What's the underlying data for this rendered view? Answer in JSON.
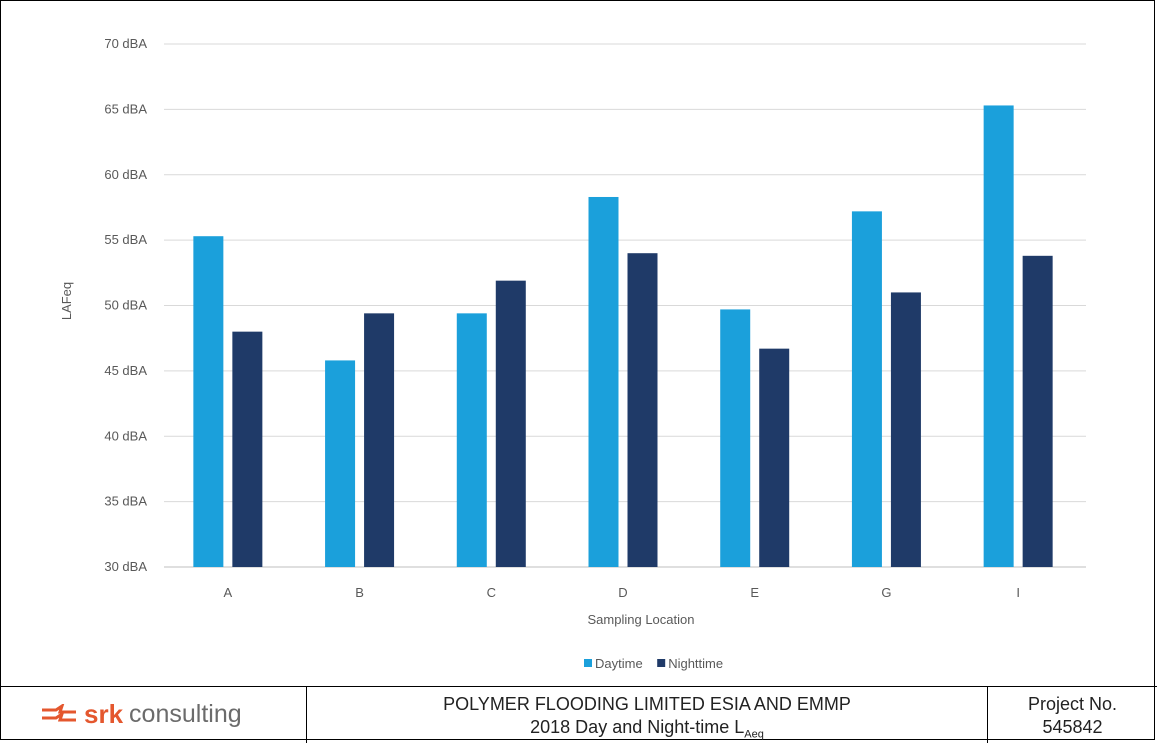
{
  "chart_data": {
    "type": "bar",
    "categories": [
      "A",
      "B",
      "C",
      "D",
      "E",
      "G",
      "I"
    ],
    "series": [
      {
        "name": "Daytime",
        "values": [
          55.3,
          45.8,
          49.4,
          58.3,
          49.7,
          57.2,
          65.3
        ],
        "color": "#1ba0db"
      },
      {
        "name": "Nighttime",
        "values": [
          48.0,
          49.4,
          51.9,
          54.0,
          46.7,
          51.0,
          53.8
        ],
        "color": "#1f3a68"
      }
    ],
    "xlabel": "Sampling Location",
    "ylabel": "LAFeq",
    "ylim": [
      30,
      70
    ],
    "yticks": [
      30,
      35,
      40,
      45,
      50,
      55,
      60,
      65,
      70
    ],
    "ytick_labels": [
      "30 dBA",
      "35 dBA",
      "40 dBA",
      "45 dBA",
      "50 dBA",
      "55 dBA",
      "60 dBA",
      "65 dBA",
      "70 dBA"
    ],
    "grid": true,
    "legend_position": "bottom"
  },
  "footer": {
    "logo_name": "srk-logo-icon",
    "logo_word": "srk",
    "logo_rest": "consulting",
    "title_line1": "POLYMER FLOODING LIMITED ESIA AND EMMP",
    "title_line2_main": "2018 Day and Night-time L",
    "title_line2_sub": "Aeq",
    "project_label": "Project No.",
    "project_number": "545842"
  },
  "colors": {
    "brand_orange": "#e4572e",
    "gridline": "#d9d9d9"
  }
}
